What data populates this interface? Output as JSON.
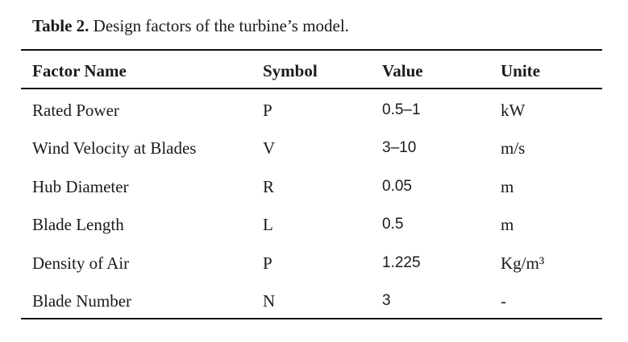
{
  "caption": {
    "label": "Table 2.",
    "text": "Design factors of the turbine’s model."
  },
  "table": {
    "headers": [
      "Factor Name",
      "Symbol",
      "Value",
      "Unite"
    ],
    "rows": [
      [
        "Rated Power",
        "P",
        "0.5–1",
        "kW"
      ],
      [
        "Wind Velocity at Blades",
        "V",
        "3–10",
        "m/s"
      ],
      [
        "Hub Diameter",
        "R",
        "0.05",
        "m"
      ],
      [
        "Blade Length",
        "L",
        "0.5",
        "m"
      ],
      [
        "Density of Air",
        "P",
        "1.225",
        "Kg/m³"
      ],
      [
        "Blade Number",
        "N",
        "3",
        "-"
      ]
    ]
  }
}
